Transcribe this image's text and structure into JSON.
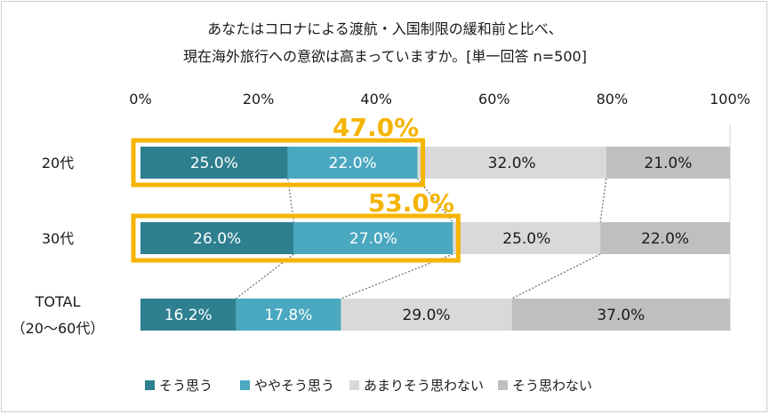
{
  "chart_data": {
    "type": "bar",
    "orientation": "horizontal-stacked-100",
    "title_lines": [
      "あなたはコロナによる渡航・入国制限の緩和前と比べ、",
      "現在海外旅行への意欲は高まっていますか。[単一回答 n=500]"
    ],
    "xlim": [
      0,
      100
    ],
    "x_ticks": [
      "0%",
      "20%",
      "40%",
      "60%",
      "80%",
      "100%"
    ],
    "grid": false,
    "legend_position": "bottom",
    "categories": [
      {
        "label_lines": [
          "20代"
        ]
      },
      {
        "label_lines": [
          "30代"
        ]
      },
      {
        "label_lines": [
          "TOTAL",
          "（20～60代）"
        ]
      }
    ],
    "series": [
      {
        "name": "そう思う",
        "color": "#2e7f8f",
        "label_color": "#ffffff",
        "values": [
          25.0,
          26.0,
          16.2
        ],
        "labels": [
          "25.0%",
          "26.0%",
          "16.2%"
        ]
      },
      {
        "name": "ややそう思う",
        "color": "#4aa8c0",
        "label_color": "#ffffff",
        "values": [
          22.0,
          27.0,
          17.8
        ],
        "labels": [
          "22.0%",
          "27.0%",
          "17.8%"
        ]
      },
      {
        "name": "あまりそう思わない",
        "color": "#d9d9d9",
        "label_color": "#1a1a1a",
        "values": [
          32.0,
          25.0,
          29.0
        ],
        "labels": [
          "32.0%",
          "25.0%",
          "29.0%"
        ]
      },
      {
        "name": "そう思わない",
        "color": "#bfbfbf",
        "label_color": "#1a1a1a",
        "values": [
          21.0,
          22.0,
          37.0
        ],
        "labels": [
          "21.0%",
          "22.0%",
          "37.0%"
        ]
      }
    ],
    "callouts": [
      {
        "category_index": 0,
        "value": 47.0,
        "text": "47.0%"
      },
      {
        "category_index": 1,
        "value": 53.0,
        "text": "53.0%"
      }
    ],
    "highlight_color": "#f5b400",
    "connector_color": "#6b6b6b"
  }
}
